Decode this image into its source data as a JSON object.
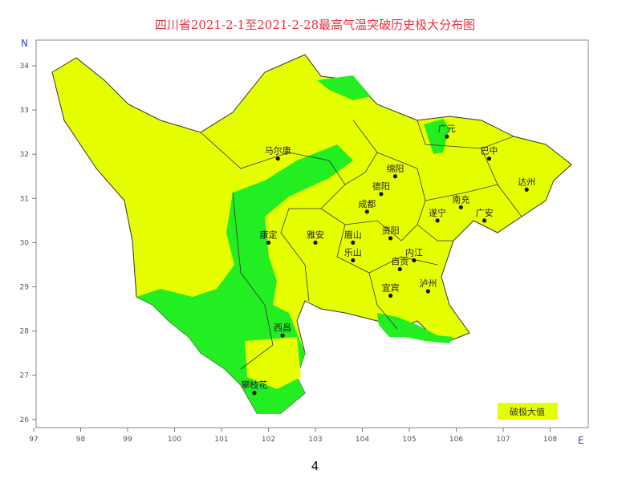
{
  "title": "四川省2021-2-1至2021-2-28最高气温突破历史极大分布图",
  "axes": {
    "north_label": "N",
    "east_label": "E",
    "longitude_ticks": [
      "97",
      "98",
      "99",
      "100",
      "101",
      "102",
      "103",
      "104",
      "105",
      "106",
      "107",
      "108"
    ],
    "latitude_ticks": [
      "26",
      "27",
      "28",
      "29",
      "30",
      "31",
      "32",
      "33",
      "34"
    ]
  },
  "legend": {
    "label": "破极大值",
    "color": "#e6ff00"
  },
  "colors": {
    "exceed": "#e6ff00",
    "not_exceed": "#22ee22",
    "boundary": "#333333"
  },
  "cities": [
    {
      "name": "马尔康",
      "lon": 102.2,
      "lat": 31.9
    },
    {
      "name": "广元",
      "lon": 105.8,
      "lat": 32.4
    },
    {
      "name": "巴中",
      "lon": 106.7,
      "lat": 31.9
    },
    {
      "name": "绵阳",
      "lon": 104.7,
      "lat": 31.5
    },
    {
      "name": "德阳",
      "lon": 104.4,
      "lat": 31.1
    },
    {
      "name": "达州",
      "lon": 107.5,
      "lat": 31.2
    },
    {
      "name": "成都",
      "lon": 104.1,
      "lat": 30.7
    },
    {
      "name": "南充",
      "lon": 106.1,
      "lat": 30.8
    },
    {
      "name": "遂宁",
      "lon": 105.6,
      "lat": 30.5
    },
    {
      "name": "广安",
      "lon": 106.6,
      "lat": 30.5
    },
    {
      "name": "康定",
      "lon": 102.0,
      "lat": 30.0
    },
    {
      "name": "雅安",
      "lon": 103.0,
      "lat": 30.0
    },
    {
      "name": "眉山",
      "lon": 103.8,
      "lat": 30.0
    },
    {
      "name": "资阳",
      "lon": 104.6,
      "lat": 30.1
    },
    {
      "name": "乐山",
      "lon": 103.8,
      "lat": 29.6
    },
    {
      "name": "内江",
      "lon": 105.1,
      "lat": 29.6
    },
    {
      "name": "自贡",
      "lon": 104.8,
      "lat": 29.4
    },
    {
      "name": "泸州",
      "lon": 105.4,
      "lat": 28.9
    },
    {
      "name": "宜宾",
      "lon": 104.6,
      "lat": 28.8
    },
    {
      "name": "西昌",
      "lon": 102.3,
      "lat": 27.9
    },
    {
      "name": "攀枝花",
      "lon": 101.7,
      "lat": 26.6
    }
  ],
  "page_number": "4"
}
